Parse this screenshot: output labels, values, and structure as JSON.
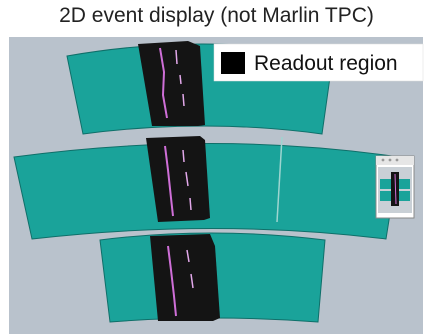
{
  "title": "2D event display (not Marlin TPC)",
  "legend": {
    "label": "Readout region",
    "swatch_color": "#000000"
  },
  "colors": {
    "background": "#b9c2cc",
    "module": "#1aa39a",
    "module_edge": "#0f6f69",
    "readout": "#141414",
    "track_hit": "#cf6fd8",
    "track_hit_alt": "#ffffff"
  },
  "rows": [
    {
      "name": "top-row",
      "modules": 1
    },
    {
      "name": "middle-row",
      "modules": 2
    },
    {
      "name": "bottom-row",
      "modules": 1
    }
  ],
  "inset": {
    "visible": true,
    "icon": "mini-event-thumbnail-icon"
  }
}
